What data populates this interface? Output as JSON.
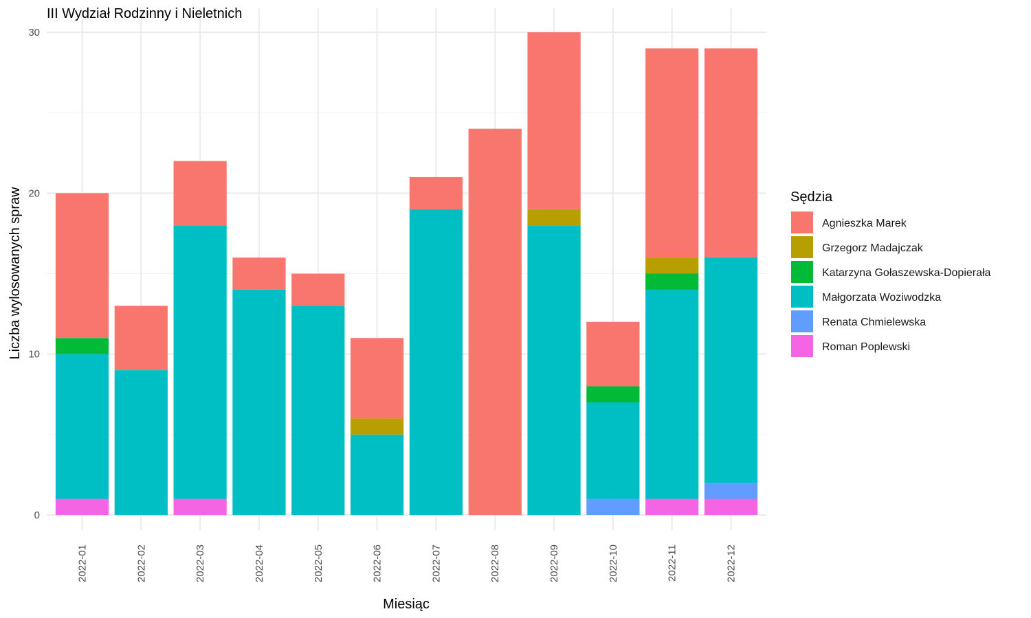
{
  "chart_data": {
    "type": "bar",
    "stacked": true,
    "title": "III Wydział Rodzinny i Nieletnich",
    "xlabel": "Miesiąc",
    "ylabel": "Liczba wylosowanych spraw",
    "ylim": [
      0,
      30
    ],
    "yticks": [
      0,
      10,
      20,
      30
    ],
    "grid": true,
    "legend_title": "Sędzia",
    "legend_position": "right",
    "categories": [
      "2022-01",
      "2022-02",
      "2022-03",
      "2022-04",
      "2022-05",
      "2022-06",
      "2022-07",
      "2022-08",
      "2022-09",
      "2022-10",
      "2022-11",
      "2022-12"
    ],
    "stack_order": [
      "Roman Poplewski",
      "Renata Chmielewska",
      "Małgorzata Woziwodzka",
      "Katarzyna Gołaszewska-Dopierała",
      "Grzegorz Madajczak",
      "Agnieszka Marek"
    ],
    "series": [
      {
        "name": "Agnieszka Marek",
        "color": "#F8766D",
        "values": [
          9,
          4,
          4,
          2,
          2,
          5,
          2,
          24,
          11,
          4,
          13,
          13
        ]
      },
      {
        "name": "Grzegorz Madajczak",
        "color": "#B79F00",
        "values": [
          0,
          0,
          0,
          0,
          0,
          1,
          0,
          0,
          1,
          0,
          1,
          0
        ]
      },
      {
        "name": "Katarzyna Gołaszewska-Dopierała",
        "color": "#00BA38",
        "values": [
          1,
          0,
          0,
          0,
          0,
          0,
          0,
          0,
          0,
          1,
          1,
          0
        ]
      },
      {
        "name": "Małgorzata Woziwodzka",
        "color": "#00BFC4",
        "values": [
          9,
          9,
          17,
          14,
          13,
          5,
          19,
          0,
          18,
          6,
          13,
          14
        ]
      },
      {
        "name": "Renata Chmielewska",
        "color": "#619CFF",
        "values": [
          0,
          0,
          0,
          0,
          0,
          0,
          0,
          0,
          0,
          1,
          0,
          1
        ]
      },
      {
        "name": "Roman Poplewski",
        "color": "#F564E3",
        "values": [
          1,
          0,
          1,
          0,
          0,
          0,
          0,
          0,
          0,
          0,
          1,
          1
        ]
      }
    ]
  }
}
